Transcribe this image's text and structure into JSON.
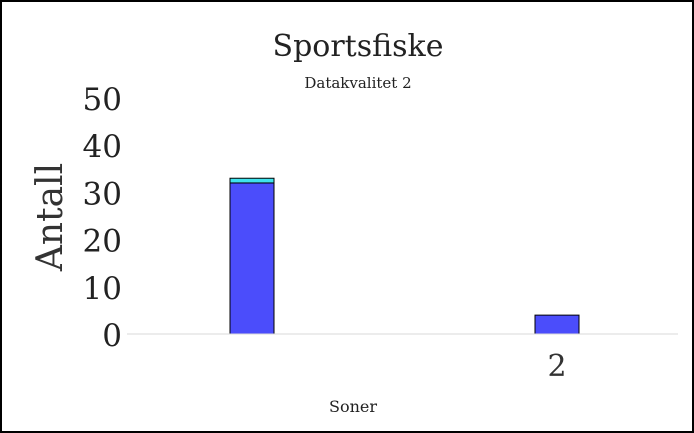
{
  "chart_data": {
    "type": "bar",
    "stacked": true,
    "title": "Sportsfiske",
    "subtitle": "Datakvalitet 2",
    "xlabel": "Soner",
    "ylabel": "Antall",
    "ylim": [
      0,
      50
    ],
    "yticks": [
      "0",
      "10",
      "20",
      "30",
      "40",
      "50"
    ],
    "categories": [
      "",
      "2"
    ],
    "series": [
      {
        "color": "#4b4dfb",
        "values": [
          32,
          4
        ]
      },
      {
        "color": "#3fe3ee",
        "values": [
          1,
          0
        ]
      }
    ],
    "grid": false,
    "legend": "none"
  }
}
